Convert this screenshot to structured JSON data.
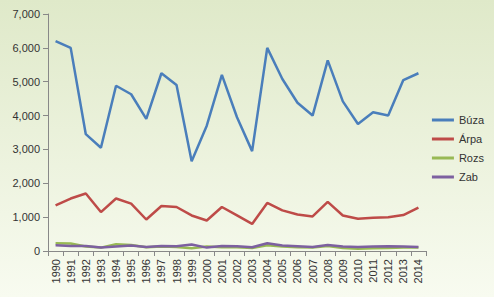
{
  "chart_data": {
    "type": "line",
    "categories": [
      "1990",
      "1991",
      "1992",
      "1993",
      "1994",
      "1995",
      "1996",
      "1997",
      "1998",
      "1999",
      "2000",
      "2001",
      "2002",
      "2003",
      "2004",
      "2005",
      "2006",
      "2007",
      "2008",
      "2009",
      "2010",
      "2011",
      "2012",
      "2013",
      "2014"
    ],
    "series": [
      {
        "name": "Búza",
        "color": "#4a7ebb",
        "values": [
          6200,
          6000,
          3450,
          3050,
          4880,
          4630,
          3900,
          5250,
          4900,
          2650,
          3700,
          5200,
          3950,
          2950,
          6000,
          5080,
          4380,
          4000,
          5630,
          4420,
          3750,
          4100,
          4000,
          5050,
          5250
        ]
      },
      {
        "name": "Árpa",
        "color": "#be4b48",
        "values": [
          1350,
          1550,
          1700,
          1150,
          1550,
          1400,
          930,
          1330,
          1300,
          1050,
          900,
          1300,
          1050,
          800,
          1420,
          1200,
          1080,
          1020,
          1450,
          1050,
          950,
          980,
          1000,
          1060,
          1280
        ]
      },
      {
        "name": "Rozs",
        "color": "#98b954",
        "values": [
          230,
          220,
          130,
          100,
          200,
          180,
          110,
          130,
          120,
          80,
          130,
          110,
          110,
          90,
          170,
          130,
          110,
          100,
          150,
          90,
          70,
          80,
          90,
          100,
          100
        ]
      },
      {
        "name": "Zab",
        "color": "#7d60a0",
        "values": [
          170,
          150,
          150,
          100,
          130,
          160,
          120,
          150,
          140,
          190,
          100,
          150,
          140,
          110,
          230,
          160,
          140,
          120,
          180,
          130,
          120,
          130,
          140,
          130,
          120
        ]
      }
    ],
    "ylim": [
      0,
      7000
    ],
    "yticks": [
      0,
      {
        "value": 1000,
        "label": "1,000"
      },
      {
        "value": 2000,
        "label": "2,000"
      },
      {
        "value": 3000,
        "label": "3,000"
      },
      {
        "value": 4000,
        "label": "4,000"
      },
      {
        "value": 5000,
        "label": "5,000"
      },
      {
        "value": 6000,
        "label": "6,000"
      },
      {
        "value": 7000,
        "label": "7,000"
      }
    ],
    "grid": false,
    "legend": "right"
  }
}
